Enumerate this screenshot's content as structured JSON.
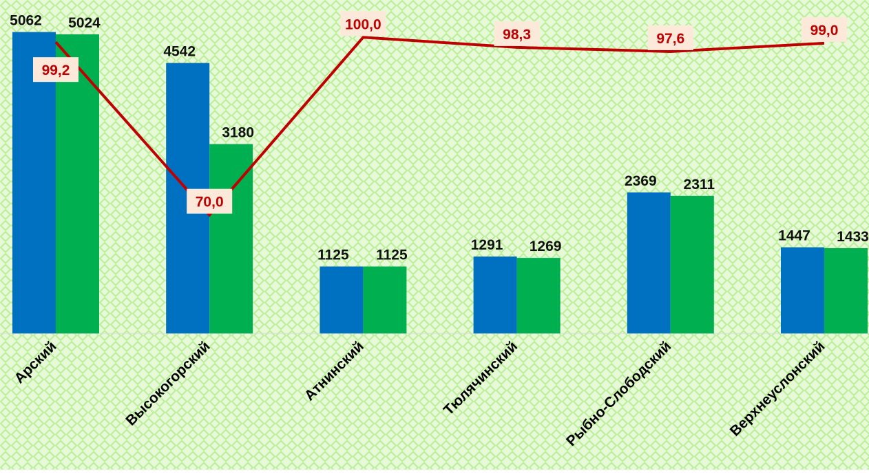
{
  "chart_data": {
    "type": "bar",
    "categories": [
      "Арский",
      "Высокогорский",
      "Атнинский",
      "Тюлячинский",
      "Рыбно-Слободский",
      "Верхнеуслонский"
    ],
    "series": [
      {
        "color": "#0070c0",
        "values": [
          5062,
          4542,
          1125,
          1291,
          2369,
          1447
        ]
      },
      {
        "color": "#00b050",
        "values": [
          5024,
          3180,
          1125,
          1269,
          2311,
          1433
        ]
      },
      {
        "type": "line",
        "axis": "y2",
        "color": "#c00000",
        "values": [
          99.2,
          70.0,
          100.0,
          98.3,
          97.6,
          99.0
        ],
        "value_labels": [
          "99,2",
          "70,0",
          "100,0",
          "98,3",
          "97,6",
          "99,0"
        ]
      }
    ],
    "ylim": [
      0,
      5600
    ],
    "y2lim": [
      50,
      106.3
    ]
  }
}
